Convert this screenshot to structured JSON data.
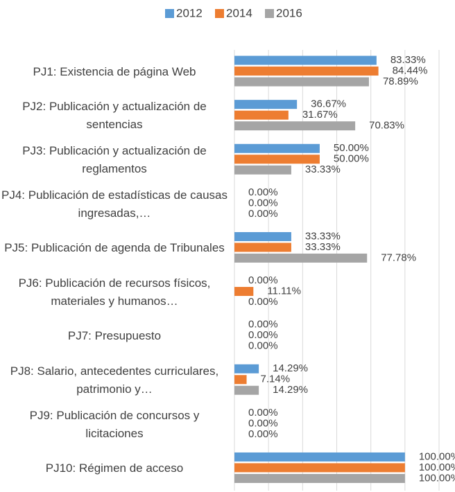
{
  "chart_data": {
    "type": "hbar",
    "categories": [
      "PJ1: Existencia de página Web",
      "PJ2: Publicación y actualización de sentencias",
      "PJ3: Publicación y actualización de reglamentos",
      "PJ4: Publicación de estadísticas de causas ingresadas,…",
      "PJ5: Publicación de agenda de Tribunales",
      "PJ6: Publicación de recursos físicos, materiales y humanos…",
      "PJ7: Presupuesto",
      "PJ8: Salario, antecedentes curriculares, patrimonio y…",
      "PJ9: Publicación de concursos y licitaciones",
      "PJ10: Régimen de acceso"
    ],
    "series": [
      {
        "name": "2012",
        "color": "#5b9bd5",
        "values": [
          83.33,
          36.67,
          50,
          0,
          33.33,
          0,
          0,
          14.29,
          0,
          100
        ],
        "value_labels": [
          "83.33%",
          "36.67%",
          "50.00%",
          "0.00%",
          "33.33%",
          "0.00%",
          "0.00%",
          "14.29%",
          "0.00%",
          "100.00%"
        ]
      },
      {
        "name": "2014",
        "color": "#ed7d31",
        "values": [
          84.44,
          31.67,
          50,
          0,
          33.33,
          11.11,
          0,
          7.14,
          0,
          100
        ],
        "value_labels": [
          "84.44%",
          "31.67%",
          "50.00%",
          "0.00%",
          "33.33%",
          "11.11%",
          "0.00%",
          "7.14%",
          "0.00%",
          "100.00%"
        ]
      },
      {
        "name": "2016",
        "color": "#a5a5a5",
        "values": [
          78.89,
          70.83,
          33.33,
          0,
          77.78,
          0,
          0,
          14.29,
          0,
          100
        ],
        "value_labels": [
          "78.89%",
          "70.83%",
          "33.33%",
          "0.00%",
          "77.78%",
          "0.00%",
          "0.00%",
          "14.29%",
          "0.00%",
          "100.00%"
        ]
      }
    ],
    "xlim": [
      0,
      120
    ],
    "xticks": [
      0,
      20,
      40,
      60,
      80,
      100,
      120
    ],
    "grid": true,
    "legend": "top"
  }
}
